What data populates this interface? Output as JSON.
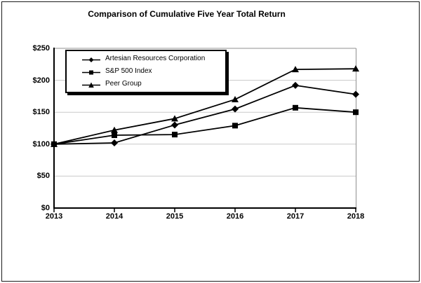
{
  "title": "Comparison of Cumulative Five Year Total Return",
  "chart_data": {
    "type": "line",
    "title": "Comparison of Cumulative Five Year Total Return",
    "x": [
      "2013",
      "2014",
      "2015",
      "2016",
      "2017",
      "2018"
    ],
    "series": [
      {
        "name": "Artesian Resources Corporation",
        "marker": "diamond",
        "color": "#000000",
        "values": [
          100,
          102,
          130,
          155,
          192,
          178
        ]
      },
      {
        "name": "S&P 500 Index",
        "marker": "square",
        "color": "#000000",
        "values": [
          100,
          114,
          115,
          129,
          157,
          150
        ]
      },
      {
        "name": "Peer Group",
        "marker": "triangle",
        "color": "#000000",
        "values": [
          100,
          122,
          140,
          170,
          217,
          218
        ]
      }
    ],
    "ylim": [
      0,
      250
    ],
    "ytick_step": 50,
    "ytick_labels": [
      "$0",
      "$50",
      "$100",
      "$150",
      "$200",
      "$250"
    ],
    "xlabel": "",
    "ylabel": "",
    "grid": true,
    "legend_position": "top-left-inside",
    "line_color": "#000000"
  },
  "colors": {
    "background": "#ffffff",
    "axis": "#000000",
    "gridline": "#c9c9c9",
    "plot_border": "#8f8f8f",
    "series": "#000000"
  }
}
